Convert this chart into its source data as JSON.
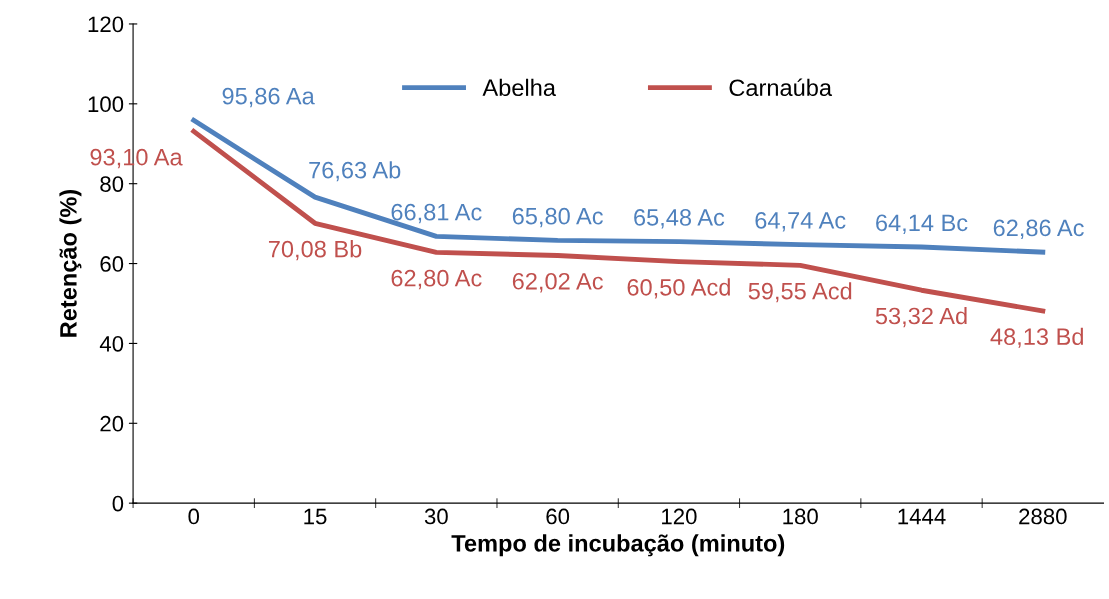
{
  "chart_data": {
    "type": "line",
    "xlabel": "Tempo de incubação (minuto)",
    "ylabel": "Retenção (%)",
    "categories": [
      "0",
      "15",
      "30",
      "60",
      "120",
      "180",
      "1444",
      "2880"
    ],
    "series": [
      {
        "name": "Abelha",
        "color": "#4f81bd",
        "values": [
          95.86,
          76.63,
          66.81,
          65.8,
          65.48,
          64.74,
          64.14,
          62.86
        ],
        "value_labels": [
          "95,86 Aa",
          "76,63 Ab",
          "66,81 Ac",
          "65,80 Ac",
          "65,48 Ac",
          "64,74 Ac",
          "64,14 Bc",
          "62,86 Ac"
        ]
      },
      {
        "name": "Carnaúba",
        "color": "#c0504d",
        "values": [
          93.1,
          70.08,
          62.8,
          62.02,
          60.5,
          59.55,
          53.32,
          48.13
        ],
        "value_labels": [
          "93,10 Aa",
          "70,08 Bb",
          "62,80 Ac",
          "62,02 Ac",
          "60,50 Acd",
          "59,55 Acd",
          "53,32 Ad",
          "48,13 Bd"
        ]
      }
    ],
    "ylim": [
      0,
      120
    ],
    "yticks": [
      0,
      20,
      40,
      60,
      80,
      100,
      120
    ],
    "grid": false,
    "legend": "top",
    "marker": "none",
    "line_style": "solid"
  }
}
